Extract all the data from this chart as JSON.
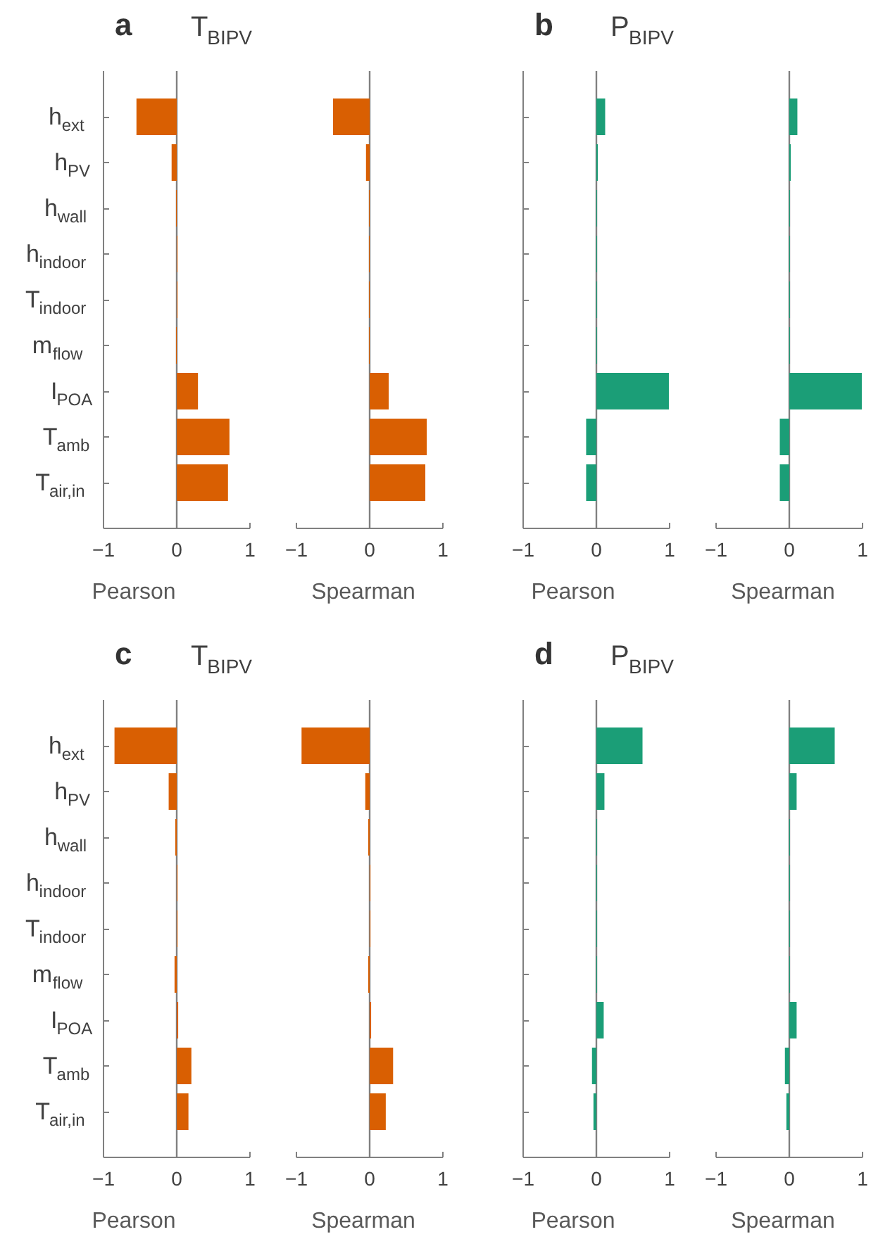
{
  "chart_data": [
    {
      "type": "bar",
      "orientation": "horizontal",
      "title": "a",
      "subtitle": "T$_{BIPV}$",
      "xlabel": "Pearson",
      "categories": [
        "h$_{ext}$",
        "h$_{PV}$",
        "h$_{wall}$",
        "h$_{indoor}$",
        "T$_{indoor}$",
        "m$_{flow}$",
        "I$_{POA}$",
        "T$_{amb}$",
        "T$_{air,in}$"
      ],
      "values": [
        -0.55,
        -0.07,
        -0.01,
        0.01,
        0.01,
        -0.01,
        0.29,
        0.72,
        0.7
      ],
      "color": "#d95f02",
      "xlim": [
        -1,
        1
      ],
      "xticks": [
        -1,
        0,
        1
      ],
      "ref_lines": [
        {
          "axis": "x",
          "value": 0,
          "color": "#808080"
        }
      ]
    },
    {
      "type": "bar",
      "orientation": "horizontal",
      "xlabel": "Spearman",
      "categories": [
        null,
        null,
        null,
        null,
        null,
        null,
        null,
        null,
        null
      ],
      "values": [
        -0.5,
        -0.05,
        -0.01,
        -0.01,
        -0.01,
        -0.01,
        0.26,
        0.78,
        0.76
      ],
      "color": "#d95f02",
      "xlim": [
        -1,
        1
      ],
      "xticks": [
        -1,
        0,
        1
      ],
      "tick_labels": "x",
      "ref_lines": [
        {
          "axis": "x",
          "value": 0,
          "color": "#808080"
        }
      ]
    },
    {
      "type": "bar",
      "orientation": "horizontal",
      "title": "b",
      "subtitle": "P$_{BIPV}$",
      "xlabel": "Pearson",
      "categories": [
        null,
        null,
        null,
        null,
        null,
        null,
        null,
        null,
        null
      ],
      "values": [
        0.12,
        0.02,
        0.01,
        0.01,
        0.01,
        0.01,
        0.99,
        -0.14,
        -0.14
      ],
      "color": "#1b9e77",
      "xlim": [
        -1,
        1
      ],
      "xticks": [
        -1,
        0,
        1
      ],
      "tick_labels": "x",
      "ref_lines": [
        {
          "axis": "x",
          "value": 0,
          "color": "#808080"
        }
      ]
    },
    {
      "type": "bar",
      "orientation": "horizontal",
      "xlabel": "Spearman",
      "categories": [
        null,
        null,
        null,
        null,
        null,
        null,
        null,
        null,
        null
      ],
      "values": [
        0.11,
        0.02,
        0.01,
        0.01,
        0.01,
        0.01,
        0.99,
        -0.13,
        -0.13
      ],
      "color": "#1b9e77",
      "xlim": [
        -1,
        1
      ],
      "xticks": [
        -1,
        0,
        1
      ],
      "tick_labels": "x",
      "ref_lines": [
        {
          "axis": "x",
          "value": 0,
          "color": "#808080"
        }
      ]
    },
    {
      "type": "bar",
      "orientation": "horizontal",
      "title": "c",
      "subtitle": "T$_{BIPV}$",
      "xlabel": "Pearson",
      "categories": [
        "h$_{ext}$",
        "h$_{PV}$",
        "h$_{wall}$",
        "h$_{indoor}$",
        "T$_{indoor}$",
        "m$_{flow}$",
        "I$_{POA}$",
        "T$_{amb}$",
        "T$_{air,in}$"
      ],
      "values": [
        -0.85,
        -0.11,
        -0.02,
        0.01,
        0.01,
        -0.03,
        0.02,
        0.2,
        0.16
      ],
      "color": "#d95f02",
      "xlim": [
        -1,
        1
      ],
      "xticks": [
        -1,
        0,
        1
      ],
      "ref_lines": [
        {
          "axis": "x",
          "value": 0,
          "color": "#808080"
        }
      ]
    },
    {
      "type": "bar",
      "orientation": "horizontal",
      "xlabel": "Spearman",
      "categories": [
        null,
        null,
        null,
        null,
        null,
        null,
        null,
        null,
        null
      ],
      "values": [
        -0.93,
        -0.06,
        -0.02,
        0.01,
        0.01,
        -0.02,
        0.02,
        0.32,
        0.22
      ],
      "color": "#d95f02",
      "xlim": [
        -1,
        1
      ],
      "xticks": [
        -1,
        0,
        1
      ],
      "tick_labels": "x",
      "ref_lines": [
        {
          "axis": "x",
          "value": 0,
          "color": "#808080"
        }
      ]
    },
    {
      "type": "bar",
      "orientation": "horizontal",
      "title": "d",
      "subtitle": "P$_{BIPV}$",
      "xlabel": "Pearson",
      "categories": [
        null,
        null,
        null,
        null,
        null,
        null,
        null,
        null,
        null
      ],
      "values": [
        0.63,
        0.11,
        0.01,
        0.01,
        0.01,
        0.01,
        0.1,
        -0.06,
        -0.04
      ],
      "color": "#1b9e77",
      "xlim": [
        -1,
        1
      ],
      "xticks": [
        -1,
        0,
        1
      ],
      "tick_labels": "x",
      "ref_lines": [
        {
          "axis": "x",
          "value": 0,
          "color": "#808080"
        }
      ]
    },
    {
      "type": "bar",
      "orientation": "horizontal",
      "xlabel": "Spearman",
      "categories": [
        null,
        null,
        null,
        null,
        null,
        null,
        null,
        null,
        null
      ],
      "values": [
        0.62,
        0.1,
        0.01,
        0.01,
        0.01,
        0.01,
        0.1,
        -0.06,
        -0.04
      ],
      "color": "#1b9e77",
      "xlim": [
        -1,
        1
      ],
      "xticks": [
        -1,
        0,
        1
      ],
      "tick_labels": "x",
      "ref_lines": [
        {
          "axis": "x",
          "value": 0,
          "color": "#808080"
        }
      ]
    }
  ]
}
